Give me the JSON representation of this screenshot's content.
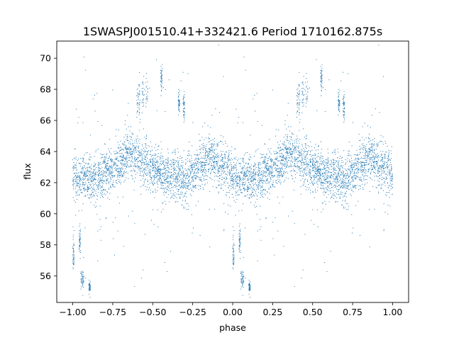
{
  "chart_data": {
    "type": "scatter",
    "title": "1SWASPJ001510.41+332421.6 Period 1710162.875s",
    "xlabel": "phase",
    "ylabel": "flux",
    "xlim": [
      -1.1,
      1.1
    ],
    "ylim": [
      54.3,
      71.1
    ],
    "xticks": [
      -1.0,
      -0.75,
      -0.5,
      -0.25,
      0.0,
      0.25,
      0.5,
      0.75,
      1.0
    ],
    "xtick_labels": [
      "−1.00",
      "−0.75",
      "−0.50",
      "−0.25",
      "0.00",
      "0.25",
      "0.50",
      "0.75",
      "1.00"
    ],
    "yticks": [
      56,
      58,
      60,
      62,
      64,
      66,
      68,
      70
    ],
    "ytick_labels": [
      "56",
      "58",
      "60",
      "62",
      "64",
      "66",
      "68",
      "70"
    ],
    "grid": false,
    "legend": "none",
    "marker_color": "#1f77b4",
    "phase_range": [
      -1.0,
      1.0
    ],
    "duplicated_with_period": 1.0,
    "baseline_profile": [
      [
        0.0,
        62.6
      ],
      [
        0.05,
        62.1
      ],
      [
        0.1,
        62.4
      ],
      [
        0.15,
        62.0
      ],
      [
        0.2,
        62.6
      ],
      [
        0.25,
        62.9
      ],
      [
        0.3,
        63.3
      ],
      [
        0.35,
        64.0
      ],
      [
        0.4,
        63.6
      ],
      [
        0.45,
        63.4
      ],
      [
        0.5,
        63.0
      ],
      [
        0.55,
        62.6
      ],
      [
        0.6,
        62.3
      ],
      [
        0.65,
        62.5
      ],
      [
        0.7,
        62.1
      ],
      [
        0.75,
        62.6
      ],
      [
        0.8,
        63.0
      ],
      [
        0.85,
        63.6
      ],
      [
        0.9,
        63.4
      ],
      [
        0.95,
        63.0
      ],
      [
        1.0,
        62.6
      ]
    ],
    "typical_scatter": 0.75,
    "bright_clumps": [
      {
        "x_range": [
          0.4,
          0.42
        ],
        "y_center": 67.3,
        "spread": 0.7
      },
      {
        "x_range": [
          0.43,
          0.47
        ],
        "y_center": 67.8,
        "spread": 0.5
      },
      {
        "x_range": [
          0.66,
          0.67
        ],
        "y_center": 67.2,
        "spread": 0.4
      },
      {
        "x_range": [
          0.69,
          0.7
        ],
        "y_center": 67.0,
        "spread": 0.5
      },
      {
        "x_range": [
          0.55,
          0.56
        ],
        "y_center": 68.8,
        "spread": 0.4
      }
    ],
    "faint_clumps": [
      {
        "x_range": [
          0.0,
          0.01
        ],
        "y_center": 57.6,
        "spread": 0.7
      },
      {
        "x_range": [
          0.05,
          0.07
        ],
        "y_center": 55.7,
        "spread": 0.4
      },
      {
        "x_range": [
          0.04,
          0.05
        ],
        "y_center": 58.2,
        "spread": 0.5
      },
      {
        "x_range": [
          0.1,
          0.11
        ],
        "y_center": 55.3,
        "spread": 0.2
      }
    ]
  }
}
